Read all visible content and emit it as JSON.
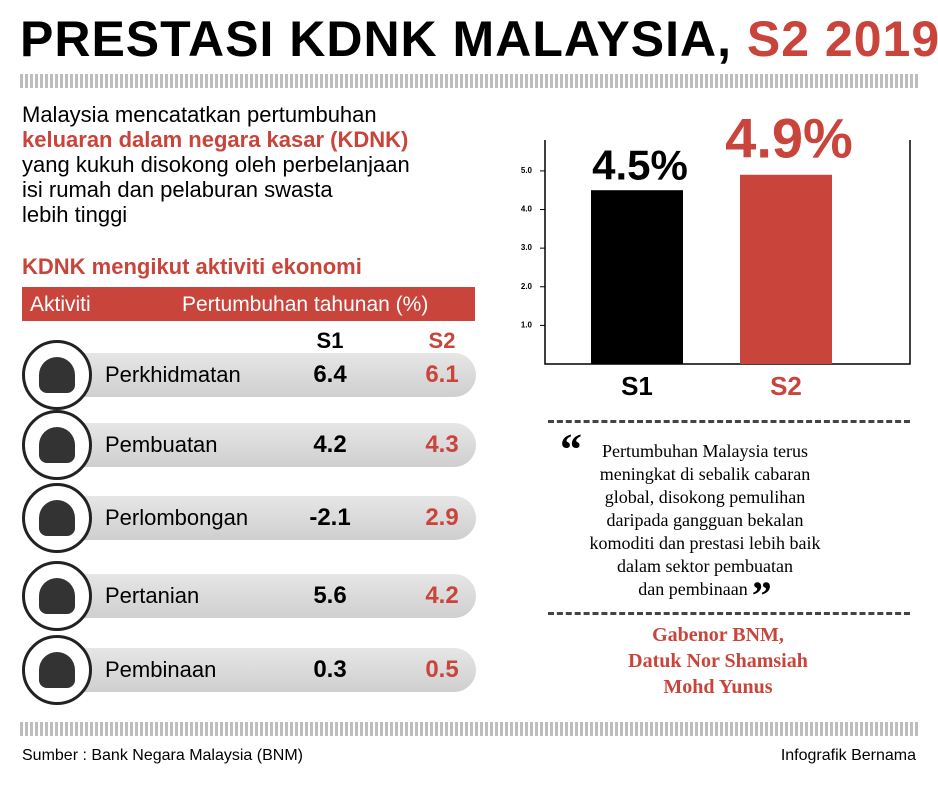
{
  "title": {
    "main": "PRESTASI KDNK MALAYSIA,",
    "highlight": "S2 2019"
  },
  "intro": {
    "lines": [
      "Malaysia mencatatkan pertumbuhan",
      "keluaran dalam negara kasar (KDNK)",
      "yang kukuh disokong oleh perbelanjaan",
      "isi rumah dan pelaburan swasta",
      "lebih tinggi"
    ]
  },
  "table": {
    "title": "KDNK mengikut aktiviti ekonomi",
    "header": [
      "Aktiviti",
      "Pertumbuhan tahunan (%)"
    ],
    "columns": [
      "S1",
      "S2"
    ],
    "rows": [
      [
        "Perkhidmatan",
        6.4,
        6.1
      ],
      [
        "Pembuatan",
        4.2,
        4.3
      ],
      [
        "Perlombongan",
        -2.1,
        2.9
      ],
      [
        "Pertanian",
        5.6,
        4.2
      ],
      [
        "Pembinaan",
        0.3,
        0.5
      ]
    ]
  },
  "chart_data": {
    "type": "bar",
    "categories": [
      "S1",
      "S2"
    ],
    "values": [
      4.5,
      4.9
    ],
    "value_labels": [
      "4.5%",
      "4.9%"
    ],
    "colors": [
      "#000000",
      "#c9443a"
    ],
    "ylim": [
      0,
      5.8
    ],
    "yticks": [
      {
        "value": 1,
        "label": "1.0"
      },
      {
        "value": 2,
        "label": "2.0"
      },
      {
        "value": 3,
        "label": "3.0"
      },
      {
        "value": 4,
        "label": "4.0"
      },
      {
        "value": 5,
        "label": "5.0"
      }
    ]
  },
  "quote": {
    "open": "“",
    "close": "”",
    "lines": [
      "Pertumbuhan Malaysia terus",
      "meningkat di sebalik cabaran",
      "global, disokong pemulihan",
      "daripada gangguan bekalan",
      "komoditi dan prestasi lebih baik",
      "dalam sektor pembuatan",
      "dan pembinaan"
    ],
    "attribution": [
      "Gabenor BNM,",
      "Datuk Nor Shamsiah",
      "Mohd Yunus"
    ]
  },
  "footer": {
    "source": "Sumber : Bank Negara Malaysia (BNM)",
    "credit": "Infografik Bernama"
  }
}
